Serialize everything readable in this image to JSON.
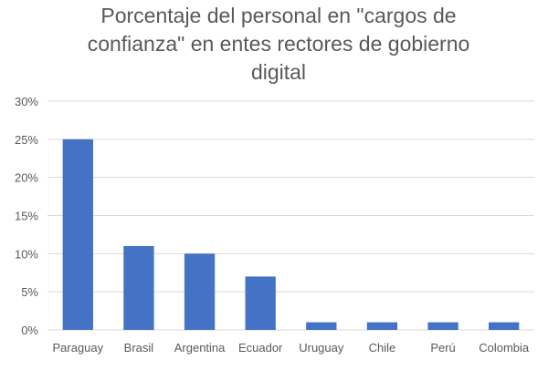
{
  "chart_data": {
    "type": "bar",
    "title_lines": [
      "Porcentaje del personal en \"cargos de",
      "confianza\" en entes rectores de gobierno",
      "digital"
    ],
    "categories": [
      "Paraguay",
      "Brasil",
      "Argentina",
      "Ecuador",
      "Uruguay",
      "Chile",
      "Perú",
      "Colombia"
    ],
    "values": [
      25,
      11,
      10,
      7,
      1,
      1,
      1,
      1
    ],
    "ylim": [
      0,
      30
    ],
    "yticks": [
      0,
      5,
      10,
      15,
      20,
      25,
      30
    ],
    "ytick_labels": [
      "0%",
      "5%",
      "10%",
      "15%",
      "20%",
      "25%",
      "30%"
    ],
    "grid": true,
    "bar_color": "#4472C4",
    "grid_color": "#D9D9D9"
  }
}
